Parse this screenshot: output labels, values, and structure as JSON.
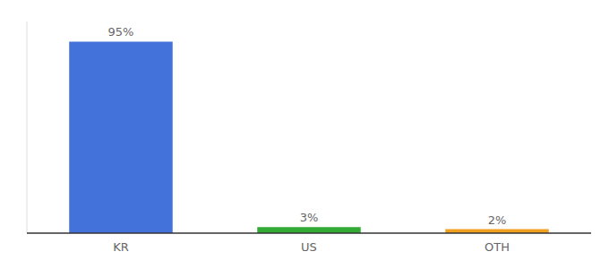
{
  "chart_data": {
    "type": "bar",
    "categories": [
      "KR",
      "US",
      "OTH"
    ],
    "values": [
      95,
      3,
      2
    ],
    "value_labels": [
      "95%",
      "3%",
      "2%"
    ],
    "colors": [
      "#4472db",
      "#33aa33",
      "#f0a020"
    ],
    "ylim": [
      0,
      105
    ],
    "data_labels": true,
    "tick_labels": "x"
  }
}
